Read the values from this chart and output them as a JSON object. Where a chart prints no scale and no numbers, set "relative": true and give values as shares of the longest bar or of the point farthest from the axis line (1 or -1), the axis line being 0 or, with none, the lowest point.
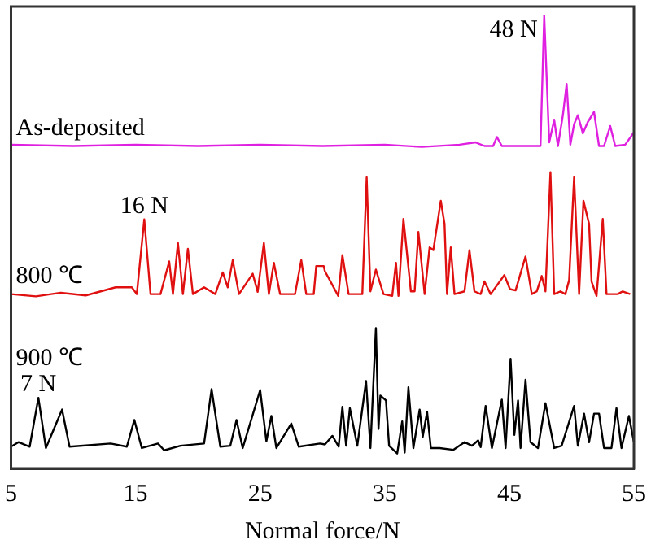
{
  "chart_data": {
    "type": "line",
    "relative": true,
    "xlabel": "Normal force/N",
    "xlim": [
      5,
      55
    ],
    "xticks": [
      5,
      15,
      25,
      35,
      45,
      55
    ],
    "grid": false,
    "legend": false,
    "marker": "none",
    "line_style": "solid",
    "annotations": [
      {
        "text": "48 N",
        "x": 47.8,
        "y": 1.0
      },
      {
        "text": "16 N",
        "x": 15.7,
        "y": 0.55
      },
      {
        "text": "7 N",
        "x": 7.2,
        "y": 0.156
      }
    ],
    "series": [
      {
        "name": "As-deposited",
        "color": "#e020e0",
        "x": [
          5,
          10,
          15,
          20,
          25,
          30,
          35,
          38,
          41,
          42.3,
          43,
          43.7,
          44,
          44.4,
          47.5,
          47.8,
          48.2,
          48.6,
          48.9,
          49.3,
          49.6,
          49.9,
          50.2,
          50.5,
          50.9,
          51.3,
          51.8,
          52.2,
          52.6,
          53.1,
          53.5,
          54.3,
          55
        ],
        "values": [
          0.715,
          0.712,
          0.715,
          0.712,
          0.715,
          0.712,
          0.715,
          0.71,
          0.715,
          0.72,
          0.712,
          0.712,
          0.732,
          0.712,
          0.712,
          1.0,
          0.72,
          0.77,
          0.712,
          0.78,
          0.849,
          0.715,
          0.76,
          0.78,
          0.74,
          0.765,
          0.787,
          0.712,
          0.712,
          0.756,
          0.712,
          0.715,
          0.742
        ]
      },
      {
        "name": "800 ℃",
        "color": "#e01010",
        "x": [
          5,
          7,
          9,
          11,
          13.4,
          14.7,
          15.1,
          15.7,
          16.2,
          17.0,
          17.7,
          18.0,
          18.4,
          18.8,
          19.2,
          19.6,
          20.5,
          21.4,
          22.0,
          22.4,
          22.8,
          23.3,
          24.4,
          24.8,
          25.3,
          25.7,
          26.1,
          26.6,
          27.8,
          28.3,
          28.7,
          29.3,
          29.5,
          30.1,
          30.19,
          31.27,
          31.6,
          32.1,
          33.2,
          33.55,
          33.85,
          34.29,
          34.9,
          35.6,
          35.9,
          36.1,
          36.5,
          37.1,
          37.4,
          37.7,
          38.2,
          38.6,
          38.9,
          39.5,
          39.8,
          40.0,
          40.3,
          40.6,
          41.4,
          41.8,
          42.2,
          42.7,
          43.0,
          43.5,
          44.6,
          45.05,
          45.5,
          46.3,
          46.8,
          47.2,
          47.6,
          47.9,
          48.3,
          48.6,
          49.1,
          49.5,
          49.8,
          50.2,
          50.6,
          50.95,
          51.4,
          51.6,
          52.0,
          52.5,
          52.8,
          53.7,
          54.1,
          54.7
        ],
        "values": [
          0.385,
          0.38,
          0.388,
          0.382,
          0.4,
          0.4,
          0.385,
          0.55,
          0.385,
          0.385,
          0.457,
          0.385,
          0.498,
          0.385,
          0.485,
          0.385,
          0.4,
          0.385,
          0.433,
          0.4,
          0.46,
          0.385,
          0.43,
          0.39,
          0.498,
          0.385,
          0.454,
          0.385,
          0.385,
          0.46,
          0.385,
          0.385,
          0.447,
          0.447,
          0.436,
          0.381,
          0.471,
          0.385,
          0.385,
          0.643,
          0.391,
          0.439,
          0.385,
          0.381,
          0.454,
          0.381,
          0.551,
          0.391,
          0.391,
          0.522,
          0.385,
          0.488,
          0.482,
          0.591,
          0.54,
          0.385,
          0.488,
          0.385,
          0.391,
          0.482,
          0.391,
          0.385,
          0.413,
          0.385,
          0.427,
          0.396,
          0.393,
          0.468,
          0.385,
          0.391,
          0.425,
          0.391,
          0.654,
          0.385,
          0.391,
          0.385,
          0.416,
          0.643,
          0.385,
          0.591,
          0.54,
          0.413,
          0.381,
          0.551,
          0.385,
          0.385,
          0.391,
          0.385
        ]
      },
      {
        "name": "900 ℃",
        "color": "#000000",
        "x": [
          5,
          5.6,
          6.5,
          7.2,
          7.8,
          9.1,
          9.7,
          13.0,
          14.3,
          14.9,
          15.5,
          16.8,
          17.3,
          18.6,
          20.5,
          21.1,
          21.8,
          22.6,
          23.1,
          23.6,
          25.0,
          25.5,
          25.9,
          26.3,
          27.5,
          28.1,
          29.8,
          30.2,
          30.8,
          31.3,
          31.6,
          31.9,
          32.2,
          32.8,
          33.5,
          33.85,
          34.29,
          34.5,
          34.65,
          35.1,
          35.35,
          36.0,
          36.4,
          36.6,
          36.9,
          37.3,
          37.8,
          38.05,
          38.4,
          38.7,
          39.4,
          40.5,
          41.4,
          42.0,
          42.5,
          42.7,
          43.1,
          43.6,
          44.4,
          44.7,
          45.1,
          45.4,
          45.7,
          45.9,
          46.3,
          46.7,
          47.3,
          47.9,
          48.6,
          49.2,
          50.2,
          50.5,
          51.0,
          51.4,
          51.8,
          52.2,
          52.6,
          53.2,
          53.6,
          54.0,
          54.6,
          55.0
        ],
        "values": [
          0.048,
          0.058,
          0.048,
          0.156,
          0.045,
          0.13,
          0.048,
          0.055,
          0.048,
          0.107,
          0.045,
          0.055,
          0.04,
          0.05,
          0.055,
          0.175,
          0.048,
          0.05,
          0.107,
          0.045,
          0.173,
          0.06,
          0.116,
          0.045,
          0.099,
          0.048,
          0.055,
          0.053,
          0.072,
          0.048,
          0.136,
          0.05,
          0.133,
          0.05,
          0.193,
          0.045,
          0.31,
          0.087,
          0.161,
          0.15,
          0.05,
          0.033,
          0.104,
          0.035,
          0.179,
          0.045,
          0.13,
          0.07,
          0.125,
          0.045,
          0.045,
          0.041,
          0.058,
          0.05,
          0.062,
          0.047,
          0.138,
          0.045,
          0.152,
          0.045,
          0.242,
          0.074,
          0.15,
          0.045,
          0.196,
          0.058,
          0.045,
          0.144,
          0.045,
          0.05,
          0.138,
          0.05,
          0.121,
          0.058,
          0.121,
          0.121,
          0.045,
          0.045,
          0.133,
          0.045,
          0.116,
          0.058
        ]
      }
    ]
  }
}
